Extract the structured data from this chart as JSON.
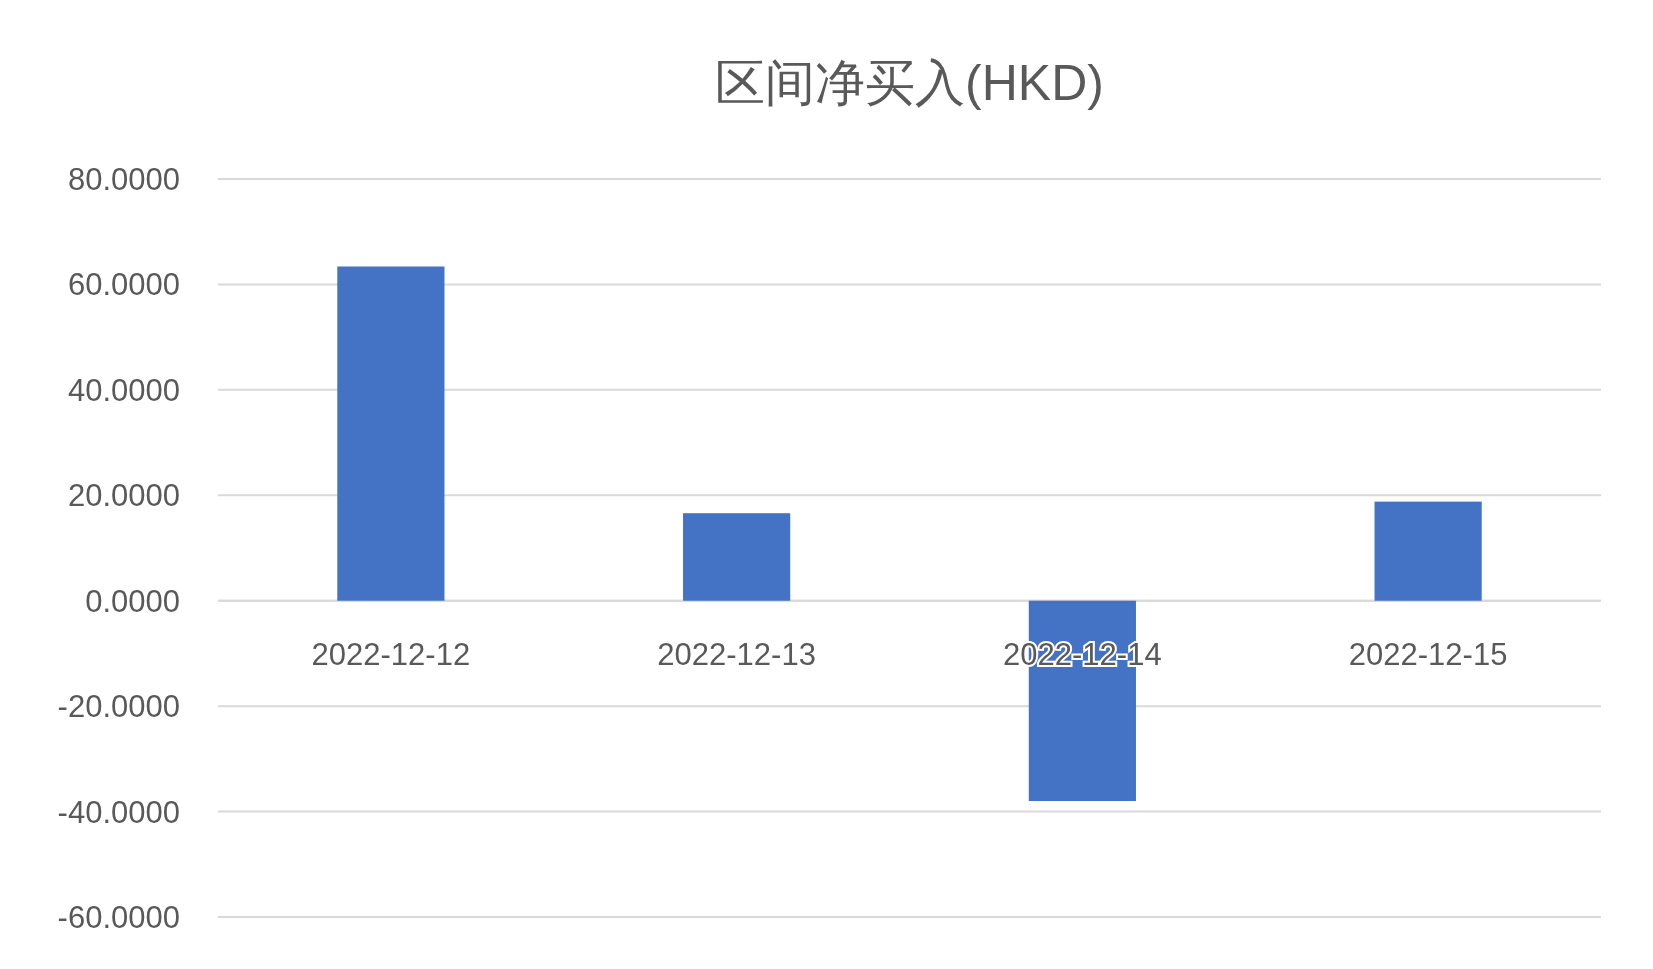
{
  "chart_data": {
    "type": "bar",
    "title": "区间净买入(HKD)",
    "categories": [
      "2022-12-12",
      "2022-12-13",
      "2022-12-14",
      "2022-12-15"
    ],
    "values": [
      63.4,
      16.6,
      -38,
      18.8
    ],
    "color": "#4472c4",
    "ylim": [
      -60,
      80
    ],
    "yticks": [
      {
        "value": -60,
        "label": "-60.0000"
      },
      {
        "value": -40,
        "label": "-40.0000"
      },
      {
        "value": -20,
        "label": "-20.0000"
      },
      {
        "value": 0,
        "label": "0.0000"
      },
      {
        "value": 20,
        "label": "20.0000"
      },
      {
        "value": 40,
        "label": "40.0000"
      },
      {
        "value": 60,
        "label": "60.0000"
      },
      {
        "value": 80,
        "label": "80.0000"
      }
    ],
    "grid": "y"
  }
}
